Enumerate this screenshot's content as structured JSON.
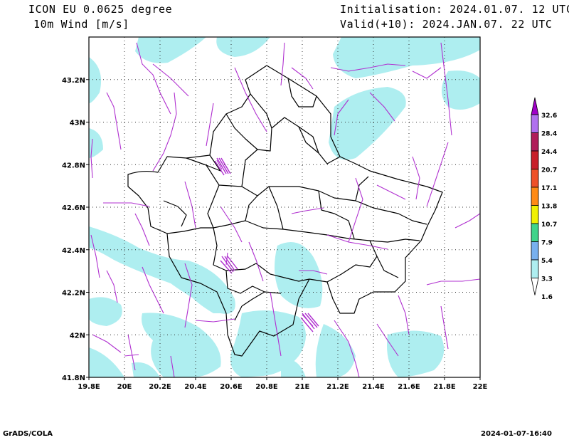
{
  "header": {
    "model": "ICON EU 0.0625 degree",
    "variable": "10m Wind [m/s]",
    "init": "Initialisation: 2024.01.07. 12 UTC",
    "valid": "Valid(+10): 2024.JAN.07. 22 UTC"
  },
  "map": {
    "x_ticks": [
      "19.8E",
      "20E",
      "20.2E",
      "20.4E",
      "20.6E",
      "20.8E",
      "21E",
      "21.2E",
      "21.4E",
      "21.6E",
      "21.8E",
      "22E"
    ],
    "y_ticks": [
      "43.2N",
      "43N",
      "42.8N",
      "42.6N",
      "42.4N",
      "42.2N",
      "42N",
      "41.8N"
    ],
    "extent": {
      "lon": [
        19.8,
        22.0
      ],
      "lat": [
        41.8,
        43.4
      ]
    },
    "grid": "dotted",
    "wind_color": "#b030d0",
    "shade_color": "#aeeef0",
    "border_color": "#000000"
  },
  "colorbar": {
    "labels": [
      "32.6",
      "28.4",
      "24.4",
      "20.7",
      "17.1",
      "13.8",
      "10.7",
      "7.9",
      "5.4",
      "3.3",
      "1.6"
    ],
    "colors": [
      "#a000c8",
      "#b070ee",
      "#b01e5a",
      "#c8202a",
      "#ee5028",
      "#ff8a14",
      "#f0f000",
      "#40d48a",
      "#78b0ee",
      "#aeeef0"
    ]
  },
  "footer": {
    "left": "GrADS/COLA",
    "right": "2024-01-07-16:40"
  }
}
